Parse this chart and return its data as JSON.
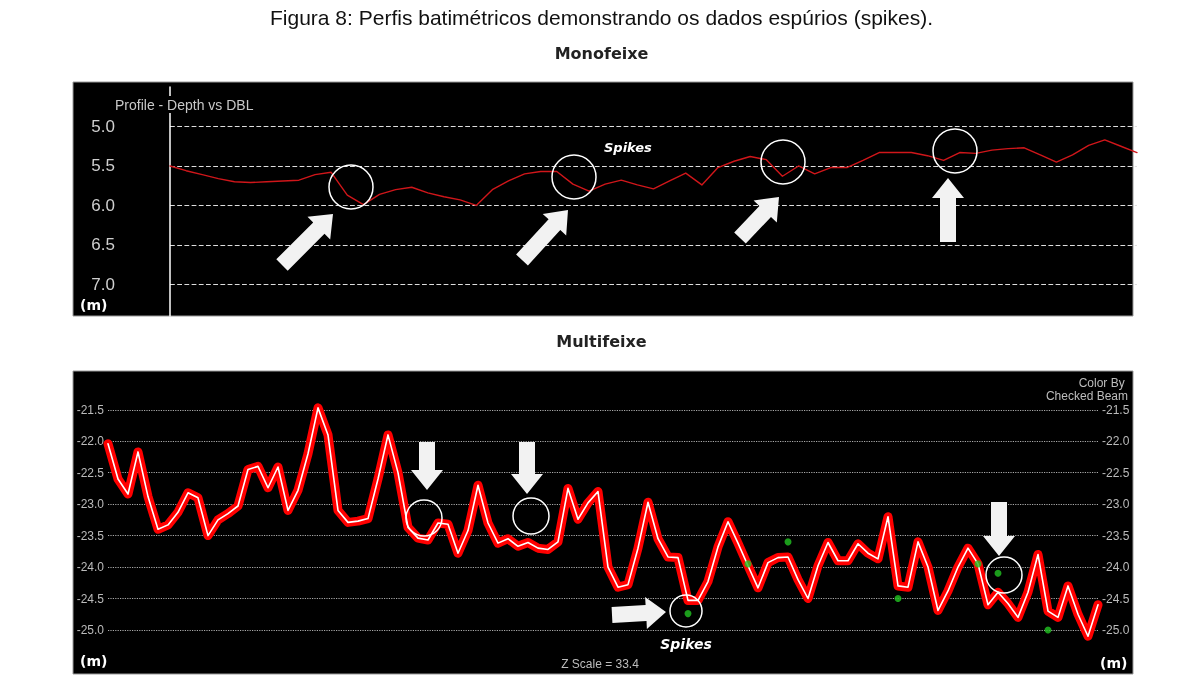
{
  "chart_data": [
    {
      "type": "line",
      "title": "Figura 8: Perfis batimétricos demonstrando os dados espúrios (spikes).",
      "subtitle": "Monofeixe",
      "ylabel": "(m)",
      "annotations": [
        "Profile - Depth vs DBL",
        "Spikes"
      ],
      "categories": [
        null,
        null,
        null,
        null,
        null,
        null,
        null,
        null,
        null,
        null,
        null,
        null,
        null,
        null,
        null,
        null,
        null,
        null,
        null,
        null,
        null,
        null,
        null,
        null,
        null,
        null,
        null,
        null,
        null,
        null,
        null,
        null,
        null,
        null,
        null,
        null,
        null,
        null,
        null,
        null,
        null,
        null,
        null,
        null,
        null,
        null,
        null,
        null,
        null,
        null,
        null,
        null,
        null,
        null,
        null,
        null,
        null,
        null,
        null,
        null,
        null
      ],
      "series": [
        {
          "color": "#d0161a",
          "values": [
            5.5,
            5.56,
            5.61,
            5.66,
            5.7,
            5.71,
            5.7,
            5.69,
            5.68,
            5.61,
            5.58,
            5.87,
            5.99,
            5.86,
            5.8,
            5.77,
            5.84,
            5.89,
            5.93,
            6.0,
            5.8,
            5.69,
            5.6,
            5.57,
            5.57,
            5.73,
            5.82,
            5.73,
            5.68,
            5.74,
            5.79,
            5.69,
            5.59,
            5.74,
            5.52,
            5.44,
            5.38,
            5.42,
            5.63,
            5.5,
            5.6,
            5.52,
            5.52,
            5.43,
            5.33,
            5.33,
            5.33,
            5.37,
            5.43,
            5.33,
            5.34,
            5.3,
            5.28,
            5.27,
            5.36,
            5.45,
            5.36,
            5.24,
            5.17,
            5.25,
            5.33
          ]
        }
      ],
      "ylim": [
        7.4,
        4.5
      ],
      "yticks": [
        {
          "value": 5.0,
          "label": "5.0"
        },
        5.5,
        {
          "value": 6.0,
          "label": "6.0"
        },
        6.5,
        {
          "value": 7.0,
          "label": "7.0"
        }
      ],
      "grid": "y",
      "tick_labels": "y"
    },
    {
      "type": "line",
      "title": "Multifeixe",
      "ylabel": "(m)",
      "y2label": "(m)",
      "annotations": [
        "Color By Checked Beam",
        "Z Scale = 33.4",
        "Spikes"
      ],
      "categories": [
        null,
        null,
        null,
        null,
        null,
        null,
        null,
        null,
        null,
        null,
        null,
        null,
        null,
        null,
        null,
        null,
        null,
        null,
        null,
        null,
        null,
        null,
        null,
        null,
        null,
        null,
        null,
        null,
        null,
        null,
        null,
        null,
        null,
        null,
        null,
        null,
        null,
        null,
        null,
        null,
        null,
        null,
        null,
        null,
        null,
        null,
        null,
        null,
        null,
        null,
        null,
        null,
        null,
        null,
        null,
        null,
        null,
        null,
        null,
        null,
        null,
        null,
        null,
        null,
        null,
        null,
        null,
        null,
        null,
        null,
        null,
        null,
        null,
        null,
        null,
        null,
        null,
        null,
        null,
        null,
        null,
        null,
        null,
        null,
        null,
        null,
        null,
        null,
        null,
        null,
        null,
        null,
        null,
        null,
        null,
        null,
        null,
        null,
        null,
        null
      ],
      "series": [
        {
          "color": "#ff0000",
          "values": [
            -22.04,
            -22.6,
            -22.84,
            -22.17,
            -22.88,
            -23.4,
            -23.33,
            -23.13,
            -22.82,
            -22.9,
            -23.5,
            -23.25,
            -23.15,
            -23.03,
            -22.45,
            -22.4,
            -22.74,
            -22.41,
            -23.1,
            -22.78,
            -22.2,
            -21.47,
            -21.9,
            -23.1,
            -23.29,
            -23.27,
            -23.23,
            -22.6,
            -21.9,
            -22.5,
            -23.37,
            -23.54,
            -23.57,
            -23.3,
            -23.32,
            -23.78,
            -23.42,
            -22.7,
            -23.3,
            -23.62,
            -23.55,
            -23.67,
            -23.61,
            -23.7,
            -23.72,
            -23.6,
            -22.75,
            -23.24,
            -22.98,
            -22.8,
            -24.0,
            -24.32,
            -24.28,
            -23.7,
            -22.97,
            -23.55,
            -23.84,
            -23.85,
            -24.53,
            -24.53,
            -24.23,
            -23.68,
            -23.28,
            -23.62,
            -23.98,
            -24.33,
            -23.93,
            -23.85,
            -23.84,
            -24.2,
            -24.5,
            -23.98,
            -23.61,
            -23.9,
            -23.9,
            -23.63,
            -23.78,
            -23.87,
            -23.2,
            -24.3,
            -24.32,
            -23.6,
            -24.0,
            -24.69,
            -24.38,
            -24.0,
            -23.7,
            -23.95,
            -24.6,
            -24.4,
            -24.58,
            -24.8,
            -24.4,
            -23.8,
            -24.7,
            -24.8,
            -24.3,
            -24.75,
            -25.1,
            -24.6
          ]
        },
        {
          "color": "#ffffff",
          "values": [
            -22.04,
            -22.6,
            -22.84,
            -22.17,
            -22.88,
            -23.4,
            -23.33,
            -23.13,
            -22.82,
            -22.9,
            -23.5,
            -23.25,
            -23.15,
            -23.03,
            -22.45,
            -22.4,
            -22.74,
            -22.41,
            -23.1,
            -22.78,
            -22.2,
            -21.47,
            -21.9,
            -23.1,
            -23.29,
            -23.27,
            -23.23,
            -22.6,
            -21.9,
            -22.5,
            -23.37,
            -23.54,
            -23.57,
            -23.3,
            -23.32,
            -23.78,
            -23.42,
            -22.7,
            -23.3,
            -23.62,
            -23.55,
            -23.67,
            -23.61,
            -23.7,
            -23.72,
            -23.6,
            -22.75,
            -23.24,
            -22.98,
            -22.8,
            -24.0,
            -24.32,
            -24.28,
            -23.7,
            -22.97,
            -23.55,
            -23.84,
            -23.85,
            -24.53,
            -24.53,
            -24.23,
            -23.68,
            -23.28,
            -23.62,
            -23.98,
            -24.33,
            -23.93,
            -23.85,
            -23.84,
            -24.2,
            -24.5,
            -23.98,
            -23.61,
            -23.9,
            -23.9,
            -23.63,
            -23.78,
            -23.87,
            -23.2,
            -24.3,
            -24.32,
            -23.6,
            -24.0,
            -24.69,
            -24.38,
            -24.0,
            -23.7,
            -23.95,
            -24.6,
            -24.4,
            -24.58,
            -24.8,
            -24.4,
            -23.8,
            -24.7,
            -24.8,
            -24.3,
            -24.75,
            -25.1,
            -24.6
          ]
        },
        {
          "type": "scatter",
          "color": "#22c322",
          "values": [
            null,
            null,
            null,
            null,
            null,
            null,
            null,
            null,
            null,
            null,
            null,
            null,
            null,
            null,
            null,
            null,
            null,
            null,
            null,
            null,
            null,
            null,
            null,
            null,
            null,
            null,
            null,
            null,
            null,
            null,
            null,
            null,
            null,
            null,
            null,
            null,
            null,
            null,
            null,
            null,
            null,
            null,
            null,
            null,
            null,
            null,
            null,
            null,
            null,
            null,
            null,
            null,
            null,
            null,
            null,
            null,
            null,
            null,
            -24.74,
            null,
            null,
            null,
            null,
            null,
            -23.95,
            null,
            null,
            null,
            -23.6,
            null,
            null,
            null,
            null,
            null,
            null,
            null,
            null,
            null,
            null,
            -24.5,
            null,
            null,
            null,
            null,
            null,
            null,
            null,
            -23.95,
            null,
            -24.1,
            null,
            null,
            null,
            null,
            -25.0,
            null,
            null,
            null,
            null,
            null
          ]
        }
      ],
      "ylim": [
        -25.7,
        -20.9
      ],
      "yticks": [
        -21.5,
        {
          "value": -22,
          "label": "-22.0"
        },
        -22.5,
        {
          "value": -23,
          "label": "-23.0"
        },
        -23.5,
        {
          "value": -24,
          "label": "-24.0"
        },
        -24.5,
        {
          "value": -25,
          "label": "-25.0"
        }
      ],
      "y2lim": [
        -25.7,
        -20.9
      ],
      "y2ticks": [
        -21.5,
        {
          "value": -22,
          "label": "-22.0"
        },
        -22.5,
        {
          "value": -23,
          "label": "-23.0"
        },
        -23.5,
        {
          "value": -24,
          "label": "-24.0"
        },
        -24.5,
        {
          "value": -25,
          "label": "-25.0"
        }
      ],
      "grid": "y",
      "tick_labels": "y"
    }
  ]
}
